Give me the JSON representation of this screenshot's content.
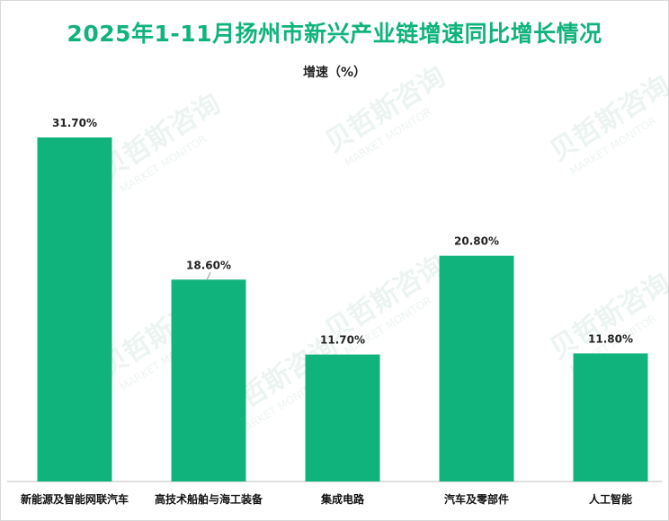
{
  "chart_data": {
    "type": "bar",
    "title": "2025年1-11月扬州市新兴产业链增速同比增长情况",
    "subtitle": "增速（%）",
    "categories": [
      "新能源及智能网联汽车",
      "高技术船舶与海工装备",
      "集成电路",
      "汽车及零部件",
      "人工智能"
    ],
    "values": [
      31.7,
      18.6,
      11.7,
      20.8,
      11.8
    ],
    "data_labels": [
      "31.70%",
      "18.60%",
      "11.70%",
      "20.80%",
      "11.80%"
    ],
    "ylim": [
      0,
      35
    ],
    "grid": false,
    "legend": "none",
    "bar_color": "#10b37c"
  },
  "watermark": {
    "text_cn": "贝哲斯咨询",
    "text_en": "MARKET MONITOR"
  },
  "colors": {
    "title": "#10b37c",
    "bar": "#10b37c",
    "axis": "#bfbfbf"
  }
}
